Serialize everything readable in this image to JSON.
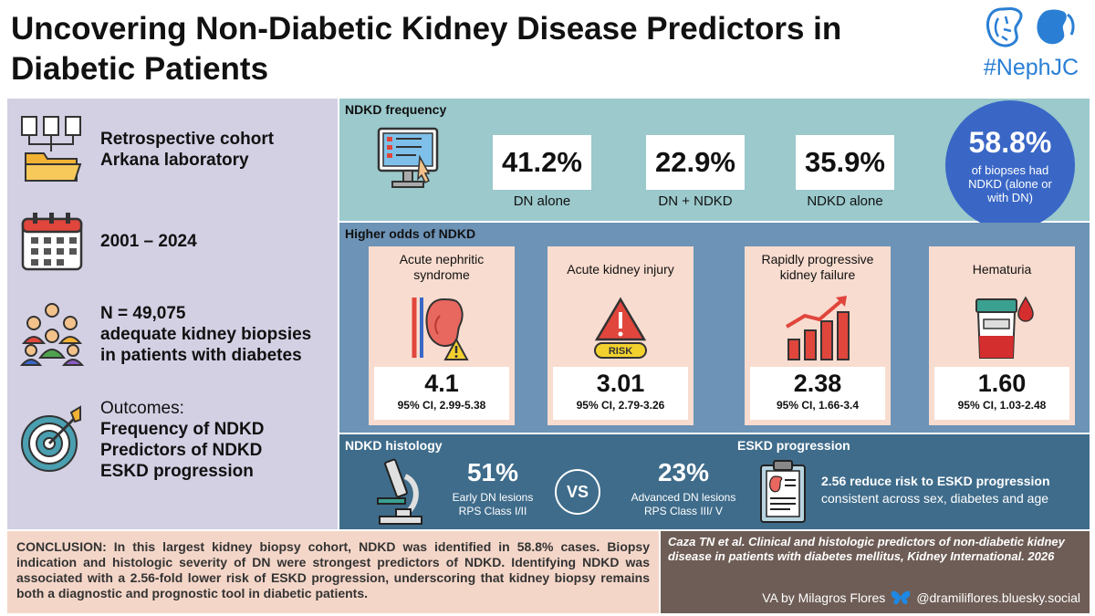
{
  "title": "Uncovering Non-Diabetic Kidney Disease Predictors in Diabetic Patients",
  "logo": {
    "tag": "#NephJC",
    "icon": "kidney-icon"
  },
  "left": {
    "cohort": {
      "line1": "Retrospective cohort",
      "line2": "Arkana laboratory",
      "icon": "folder-documents-icon"
    },
    "period": {
      "text": "2001 – 2024",
      "icon": "calendar-icon"
    },
    "sample": {
      "line1": "N = 49,075",
      "line2": "adequate kidney biopsies",
      "line3": "in patients with diabetes",
      "icon": "people-group-icon"
    },
    "outcomes": {
      "heading": "Outcomes:",
      "items": [
        "Frequency of NDKD",
        "Predictors of NDKD",
        "ESKD progression"
      ],
      "icon": "target-icon"
    }
  },
  "frequency": {
    "label": "NDKD frequency",
    "stats": [
      {
        "value": "41.2%",
        "caption": "DN alone"
      },
      {
        "value": "22.9%",
        "caption": "DN + NDKD"
      },
      {
        "value": "35.9%",
        "caption": "NDKD alone"
      }
    ],
    "summary": {
      "value": "58.8%",
      "text": "of biopses had NDKD (alone or with DN)"
    }
  },
  "odds": {
    "label": "Higher odds of NDKD",
    "cards": [
      {
        "name": "Acute nephritic syndrome",
        "value": "4.1",
        "ci": "95% CI, 2.99-5.38",
        "icon": "kidney-warning-icon"
      },
      {
        "name": "Acute kidney injury",
        "value": "3.01",
        "ci": "95% CI, 2.79-3.26",
        "icon": "risk-alarm-icon"
      },
      {
        "name": "Rapidly progressive kidney failure",
        "value": "2.38",
        "ci": "95% CI, 1.66-3.4",
        "icon": "rising-bars-icon"
      },
      {
        "name": "Hematuria",
        "value": "1.60",
        "ci": "95% CI, 1.03-2.48",
        "icon": "urine-sample-icon"
      }
    ]
  },
  "histology": {
    "label": "NDKD histology",
    "left": {
      "value": "51%",
      "line1": "Early DN lesions",
      "line2": "RPS Class I/II"
    },
    "vs": "VS",
    "right": {
      "value": "23%",
      "line1": "Advanced DN lesions",
      "line2": "RPS Class III/ V"
    }
  },
  "eskd": {
    "label": "ESKD progression",
    "line1": "2.56 reduce risk to ESKD progression",
    "line2": "consistent across sex, diabetes and age"
  },
  "conclusion": "CONCLUSION: In this largest kidney biopsy cohort, NDKD was identified in 58.8% cases. Biopsy indication and histologic severity of DN were strongest predictors of NDKD. Identifying NDKD was associated with a 2.56-fold lower risk of ESKD progression, underscoring that kidney biopsy remains both a diagnostic and prognostic tool in diabetic patients.",
  "reference": {
    "citation": "Caza TN et al. Clinical and histologic predictors of non-diabetic kidney disease in patients with diabetes mellitus, Kidney International. 2026",
    "author": "VA by Milagros Flores",
    "handle": "@dramiliflores.bluesky.social"
  },
  "colors": {
    "left_panel": "#d3d0e4",
    "frequency_panel": "#9bc9cc",
    "odds_panel": "#6d93b6",
    "histology_panel": "#3f6c8b",
    "card": "#f8dccf",
    "circle": "#3a67c6",
    "conclusion": "#f4d6c8",
    "reference": "#6e5d56",
    "brand": "#2a7fd4"
  }
}
